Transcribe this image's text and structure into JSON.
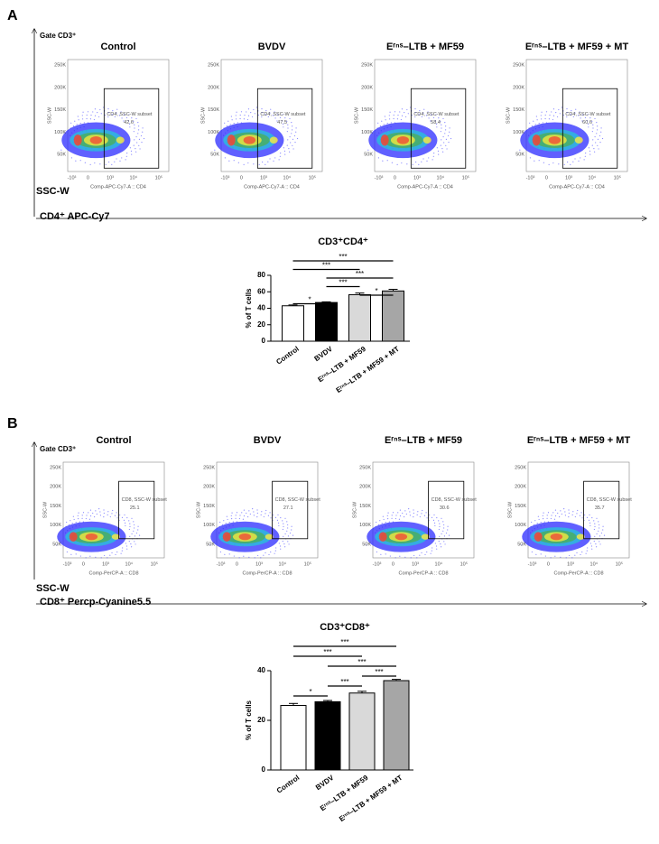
{
  "panels": [
    {
      "label": "A",
      "gate": "Gate CD3⁺",
      "y_label": "SSC-W",
      "x_label": "CD4⁺ APC-Cy7",
      "flow_axes": {
        "y_title": "SSC-W",
        "x_title": "Comp-APC-Cy7-A :: CD4",
        "yticks": [
          "250K",
          "200K",
          "150K",
          "100K",
          "50K"
        ],
        "xticks": [
          "-10³",
          "0",
          "10³",
          "10⁴",
          "10⁵"
        ]
      },
      "flow_plots": [
        {
          "title": "Control",
          "gate_name": "CD4, SSC-W subset",
          "percent": 42.6
        },
        {
          "title": "BVDV",
          "gate_name": "CD4, SSC-W subset",
          "percent": 47.5
        },
        {
          "title": "Eʳⁿˢ–LTB + MF59",
          "gate_name": "CD4, SSC-W subset",
          "percent": 58.4
        },
        {
          "title": "Eʳⁿˢ–LTB + MF59 + MT",
          "gate_name": "CD4, SSC-W subset",
          "percent": 60.6
        }
      ]
    },
    {
      "label": "B",
      "gate": "Gate CD3⁺",
      "y_label": "SSC-W",
      "x_label": "CD8⁺ Percp-Cyanine5.5",
      "flow_axes": {
        "y_title": "SSC-W",
        "x_title": "Comp-PerCP-A :: CD8",
        "yticks": [
          "250K",
          "200K",
          "150K",
          "100K",
          "50K"
        ],
        "xticks": [
          "-10³",
          "0",
          "10³",
          "10⁴",
          "10⁵"
        ]
      },
      "flow_plots": [
        {
          "title": "Control",
          "gate_name": "CD8, SSC-W subset",
          "percent": 25.1
        },
        {
          "title": "BVDV",
          "gate_name": "CD8, SSC-W subset",
          "percent": 27.1
        },
        {
          "title": "Eʳⁿˢ–LTB + MF59",
          "gate_name": "CD8, SSC-W subset",
          "percent": 30.6
        },
        {
          "title": "Eʳⁿˢ–LTB + MF59 + MT",
          "gate_name": "CD8, SSC-W subset",
          "percent": 35.7
        }
      ]
    }
  ],
  "chart_data": [
    {
      "type": "bar",
      "title": "CD3⁺CD4⁺",
      "ylabel": "% of T cells",
      "categories": [
        "Control",
        "BVDV",
        "Eʳⁿˢ–LTB + MF59",
        "Eʳⁿˢ–LTB + MF59 + MT"
      ],
      "values": [
        43,
        47,
        56.5,
        61
      ],
      "errors": [
        1,
        0.8,
        2,
        2
      ],
      "colors": [
        "#ffffff",
        "#000000",
        "#d9d9d9",
        "#a6a6a6"
      ],
      "ylim": [
        0,
        80
      ],
      "yticks": [
        0,
        20,
        40,
        60,
        80
      ],
      "significance": [
        {
          "from": 0,
          "to": 3,
          "label": "***"
        },
        {
          "from": 0,
          "to": 2,
          "label": "***"
        },
        {
          "from": 1,
          "to": 3,
          "label": "***"
        },
        {
          "from": 1,
          "to": 2,
          "label": "***"
        },
        {
          "from": 2,
          "to": 3,
          "label": "*"
        },
        {
          "from": 0,
          "to": 1,
          "label": "*"
        }
      ]
    },
    {
      "type": "bar",
      "title": "CD3⁺CD8⁺",
      "ylabel": "% of T cells",
      "categories": [
        "Control",
        "BVDV",
        "Eʳⁿˢ–LTB + MF59",
        "Eʳⁿˢ–LTB + MF59 + MT"
      ],
      "values": [
        26,
        27.5,
        31,
        36
      ],
      "errors": [
        0.8,
        0.5,
        0.7,
        0.5
      ],
      "colors": [
        "#ffffff",
        "#000000",
        "#d9d9d9",
        "#a6a6a6"
      ],
      "ylim": [
        0,
        40
      ],
      "yticks": [
        0,
        20,
        40
      ],
      "significance": [
        {
          "from": 0,
          "to": 3,
          "label": "***"
        },
        {
          "from": 0,
          "to": 2,
          "label": "***"
        },
        {
          "from": 1,
          "to": 3,
          "label": "***"
        },
        {
          "from": 2,
          "to": 3,
          "label": "***"
        },
        {
          "from": 1,
          "to": 2,
          "label": "***"
        },
        {
          "from": 0,
          "to": 1,
          "label": "*"
        }
      ]
    }
  ]
}
